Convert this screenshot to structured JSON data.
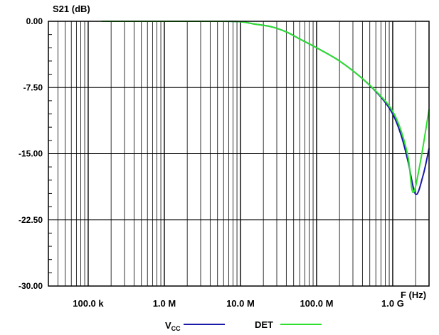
{
  "chart_data": {
    "type": "line",
    "ylabel": "S21 (dB)",
    "xlabel": "F (Hz)",
    "x_scale": "log",
    "xlim_hz": [
      30000,
      3000000000
    ],
    "ylim": [
      -30,
      0
    ],
    "grid": true,
    "y_ticks": [
      0,
      -7.5,
      -15,
      -22.5,
      -30
    ],
    "y_tick_labels": [
      "0.00",
      "-7.50",
      "-15.00",
      "-22.50",
      "-30.00"
    ],
    "x_ticks_hz": [
      100000,
      1000000,
      10000000,
      100000000,
      1000000000
    ],
    "x_tick_labels": [
      "100.0 k",
      "1.0 M",
      "10.0 M",
      "100.0 M",
      "1.0 G"
    ],
    "legend": {
      "placement": "bottom",
      "entries": [
        {
          "main": "V",
          "sub": "CC",
          "color": "#1a1aa6"
        },
        {
          "main": "DET",
          "sub": "",
          "color": "#2ee02e"
        }
      ]
    },
    "series": [
      {
        "color": "#1a1aa6",
        "x_hz": [
          150000,
          1000000,
          5000000,
          10000000,
          15000000,
          25000000,
          40000000,
          60000000,
          100000000,
          200000000,
          400000000,
          700000000,
          1000000000,
          1300000000,
          1600000000,
          2000000000,
          2500000000,
          3000000000
        ],
        "y": [
          0,
          0,
          0,
          -0.05,
          -0.3,
          -0.6,
          -1.2,
          -2.0,
          -3.0,
          -4.5,
          -6.5,
          -8.6,
          -10.5,
          -13.0,
          -16.0,
          -19.6,
          -17.5,
          -14.4
        ]
      },
      {
        "color": "#2ee02e",
        "x_hz": [
          150000,
          1000000,
          5000000,
          10000000,
          15000000,
          25000000,
          40000000,
          60000000,
          100000000,
          200000000,
          400000000,
          700000000,
          1000000000,
          1300000000,
          1600000000,
          1850000000,
          2300000000,
          3000000000
        ],
        "y": [
          0,
          0,
          0,
          -0.05,
          -0.3,
          -0.6,
          -1.2,
          -2.0,
          -3.0,
          -4.5,
          -6.5,
          -8.5,
          -10.2,
          -12.5,
          -15.5,
          -19.4,
          -16.0,
          -10.0
        ]
      }
    ]
  }
}
